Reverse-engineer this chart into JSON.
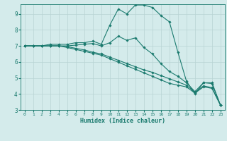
{
  "xlabel": "Humidex (Indice chaleur)",
  "ylabel": "",
  "xlim": [
    -0.5,
    23.5
  ],
  "ylim": [
    3,
    9.6
  ],
  "yticks": [
    3,
    4,
    5,
    6,
    7,
    8,
    9
  ],
  "xticks": [
    0,
    1,
    2,
    3,
    4,
    5,
    6,
    7,
    8,
    9,
    10,
    11,
    12,
    13,
    14,
    15,
    16,
    17,
    18,
    19,
    20,
    21,
    22,
    23
  ],
  "bg_color": "#d4ebeb",
  "line_color": "#1a7a6e",
  "grid_color": "#b8d4d4",
  "lines": [
    {
      "x": [
        0,
        1,
        2,
        3,
        4,
        5,
        6,
        7,
        8,
        9,
        10,
        11,
        12,
        13,
        14,
        15,
        16,
        17,
        18,
        19,
        20,
        21,
        22,
        23
      ],
      "y": [
        7.0,
        7.0,
        7.0,
        7.1,
        7.1,
        7.1,
        7.2,
        7.2,
        7.3,
        7.1,
        8.3,
        9.3,
        9.0,
        9.55,
        9.55,
        9.4,
        8.9,
        8.5,
        6.6,
        4.8,
        4.0,
        4.7,
        4.7,
        3.3
      ]
    },
    {
      "x": [
        0,
        1,
        2,
        3,
        4,
        5,
        6,
        7,
        8,
        9,
        10,
        11,
        12,
        13,
        14,
        15,
        16,
        17,
        18,
        19,
        20,
        21,
        22,
        23
      ],
      "y": [
        7.0,
        7.0,
        7.0,
        7.0,
        7.0,
        7.0,
        7.05,
        7.1,
        7.15,
        7.0,
        7.2,
        7.6,
        7.35,
        7.5,
        6.9,
        6.5,
        5.9,
        5.4,
        5.1,
        4.7,
        4.15,
        4.7,
        4.65,
        3.3
      ]
    },
    {
      "x": [
        0,
        1,
        2,
        3,
        4,
        5,
        6,
        7,
        8,
        9,
        10,
        11,
        12,
        13,
        14,
        15,
        16,
        17,
        18,
        19,
        20,
        21,
        22,
        23
      ],
      "y": [
        7.0,
        7.0,
        7.0,
        7.0,
        7.0,
        6.95,
        6.85,
        6.75,
        6.6,
        6.5,
        6.3,
        6.1,
        5.9,
        5.7,
        5.5,
        5.35,
        5.15,
        4.95,
        4.75,
        4.55,
        4.1,
        4.5,
        4.4,
        3.3
      ]
    },
    {
      "x": [
        0,
        1,
        2,
        3,
        4,
        5,
        6,
        7,
        8,
        9,
        10,
        11,
        12,
        13,
        14,
        15,
        16,
        17,
        18,
        19,
        20,
        21,
        22,
        23
      ],
      "y": [
        7.0,
        7.0,
        7.0,
        7.0,
        7.0,
        6.9,
        6.78,
        6.66,
        6.54,
        6.42,
        6.2,
        5.98,
        5.76,
        5.54,
        5.32,
        5.1,
        4.88,
        4.66,
        4.55,
        4.44,
        4.05,
        4.44,
        4.35,
        3.3
      ]
    }
  ]
}
